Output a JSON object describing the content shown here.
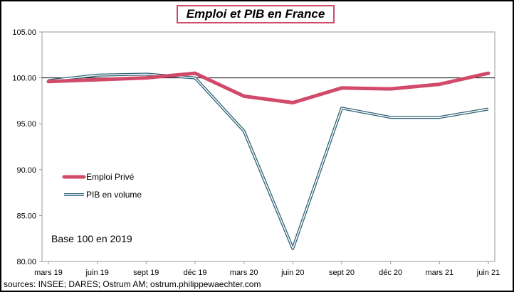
{
  "chart_data": {
    "type": "line",
    "title": "Emploi et PIB en France",
    "categories": [
      "mars 19",
      "juin 19",
      "sept 19",
      "déc 19",
      "mars 20",
      "juin 20",
      "sept 20",
      "déc 20",
      "mars 21",
      "juin 21"
    ],
    "series": [
      {
        "name": "Emploi Privé",
        "color": "#d24a6a",
        "values": [
          99.6,
          99.8,
          100.0,
          100.5,
          98.0,
          97.3,
          98.9,
          98.8,
          99.3,
          100.5
        ]
      },
      {
        "name": "PIB en volume",
        "color": "#2b5f72",
        "values": [
          99.7,
          100.3,
          100.4,
          100.0,
          94.2,
          81.4,
          96.7,
          95.7,
          95.7,
          96.6
        ]
      }
    ],
    "yticks": [
      "105.00",
      "100.00",
      "95.00",
      "90.00",
      "85.00",
      "80.00"
    ],
    "ylim": [
      80,
      105
    ],
    "reference_line": 100,
    "grid": false,
    "legend_position": "left-middle",
    "annotation": "Base 100 en 2019",
    "source": "sources: INSEE; DARES; Ostrum AM;  ostrum.philippewaechter.com"
  }
}
